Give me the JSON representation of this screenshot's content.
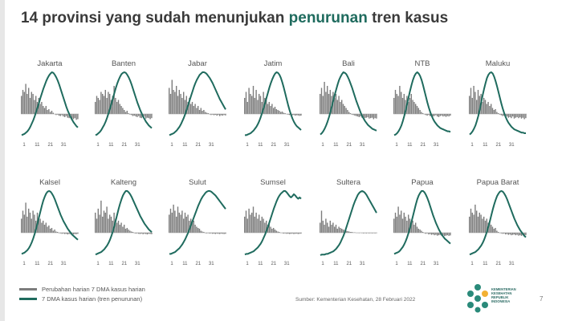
{
  "title": {
    "prefix": "14 provinsi yang sudah menunjukan",
    "accent": "penurunan",
    "suffix": "tren kasus"
  },
  "colors": {
    "bars": "#7d7d7d",
    "trend": "#1f6b5e",
    "title_accent": "#1f6b5e"
  },
  "legend": {
    "bars_label": "Perubahan harian 7 DMA kasus harian",
    "line_label": "7 DMA kasus harian (tren penurunan)"
  },
  "source": "Sumber: Kementerian Kesehatan, 28 Februari 2022",
  "logo_text": [
    "KEMENTERIAN",
    "KESEHATAN",
    "REPUBLIK",
    "INDONESIA"
  ],
  "page_number": "7",
  "chart_data": {
    "type": "bar",
    "x_ticks": [
      "1",
      "11",
      "21",
      "31"
    ],
    "x_range": [
      1,
      40
    ],
    "panels": [
      {
        "name": "Jakarta",
        "bars": [
          0.45,
          0.6,
          0.55,
          0.75,
          0.5,
          0.65,
          0.4,
          0.55,
          0.5,
          0.35,
          0.45,
          0.3,
          0.4,
          0.25,
          0.3,
          0.2,
          0.15,
          0.2,
          0.1,
          0.12,
          0.05,
          0.08,
          0.03,
          0,
          -0.05,
          -0.03,
          -0.08,
          -0.1,
          -0.06,
          -0.12,
          -0.15,
          -0.1,
          -0.18,
          -0.2,
          -0.15,
          -0.22,
          -0.25,
          -0.2,
          -0.28,
          -0.25
        ],
        "line": [
          0.02,
          0.03,
          0.04,
          0.06,
          0.08,
          0.11,
          0.15,
          0.2,
          0.25,
          0.31,
          0.38,
          0.45,
          0.52,
          0.6,
          0.67,
          0.74,
          0.8,
          0.86,
          0.91,
          0.95,
          0.98,
          1.0,
          0.99,
          0.96,
          0.92,
          0.87,
          0.81,
          0.74,
          0.67,
          0.6,
          0.53,
          0.46,
          0.4,
          0.35,
          0.3,
          0.26,
          0.22,
          0.19,
          0.16,
          0.14
        ]
      },
      {
        "name": "Banten",
        "bars": [
          0.3,
          0.45,
          0.4,
          0.35,
          0.55,
          0.5,
          0.45,
          0.6,
          0.4,
          0.55,
          0.5,
          0.35,
          0.45,
          0.7,
          0.4,
          0.3,
          0.35,
          0.25,
          0.2,
          0.15,
          0.1,
          0.05,
          0.08,
          0.02,
          -0.03,
          -0.05,
          -0.1,
          -0.08,
          -0.12,
          -0.15,
          -0.1,
          -0.18,
          -0.2,
          -0.15,
          -0.12,
          -0.22,
          -0.18,
          -0.2,
          -0.25,
          -0.2
        ],
        "line": [
          0.02,
          0.03,
          0.05,
          0.07,
          0.1,
          0.14,
          0.18,
          0.23,
          0.29,
          0.36,
          0.43,
          0.51,
          0.59,
          0.67,
          0.75,
          0.82,
          0.88,
          0.93,
          0.97,
          0.99,
          1.0,
          0.99,
          0.96,
          0.92,
          0.87,
          0.81,
          0.74,
          0.67,
          0.6,
          0.53,
          0.47,
          0.41,
          0.36,
          0.31,
          0.27,
          0.23,
          0.2,
          0.17,
          0.15,
          0.13
        ]
      },
      {
        "name": "Jabar",
        "bars": [
          0.65,
          0.5,
          0.85,
          0.6,
          0.55,
          0.7,
          0.45,
          0.6,
          0.5,
          0.4,
          0.55,
          0.35,
          0.45,
          0.3,
          0.4,
          0.25,
          0.3,
          0.2,
          0.25,
          0.15,
          0.2,
          0.1,
          0.15,
          0.08,
          0.1,
          0.05,
          0.03,
          0.02,
          -0.02,
          -0.05,
          -0.03,
          -0.06,
          -0.04,
          -0.08,
          -0.05,
          -0.1,
          -0.06,
          -0.08,
          -0.05,
          -0.07
        ],
        "line": [
          0.02,
          0.03,
          0.04,
          0.05,
          0.07,
          0.09,
          0.12,
          0.15,
          0.19,
          0.24,
          0.29,
          0.35,
          0.42,
          0.49,
          0.56,
          0.63,
          0.7,
          0.77,
          0.83,
          0.88,
          0.92,
          0.96,
          0.98,
          1.0,
          1.0,
          0.99,
          0.97,
          0.94,
          0.91,
          0.87,
          0.83,
          0.78,
          0.73,
          0.68,
          0.63,
          0.58,
          0.54,
          0.5,
          0.46,
          0.42
        ]
      },
      {
        "name": "Jatim",
        "bars": [
          0.4,
          0.55,
          0.3,
          0.65,
          0.5,
          0.45,
          0.7,
          0.4,
          0.6,
          0.35,
          0.5,
          0.45,
          0.3,
          0.55,
          0.4,
          0.35,
          0.25,
          0.3,
          0.2,
          0.25,
          0.15,
          0.18,
          0.12,
          0.1,
          0.08,
          0.05,
          0.06,
          0.03,
          0.02,
          0,
          -0.03,
          -0.05,
          -0.04,
          -0.06,
          -0.05,
          -0.08,
          -0.06,
          -0.07,
          -0.09,
          -0.08
        ],
        "line": [
          0.02,
          0.02,
          0.03,
          0.04,
          0.05,
          0.07,
          0.09,
          0.12,
          0.15,
          0.19,
          0.24,
          0.3,
          0.37,
          0.44,
          0.52,
          0.6,
          0.68,
          0.76,
          0.83,
          0.89,
          0.94,
          0.98,
          1.0,
          0.99,
          0.96,
          0.91,
          0.84,
          0.76,
          0.67,
          0.58,
          0.49,
          0.41,
          0.34,
          0.28,
          0.23,
          0.19,
          0.16,
          0.14,
          0.12,
          0.1
        ]
      },
      {
        "name": "Bali",
        "bars": [
          0.5,
          0.65,
          0.45,
          0.8,
          0.55,
          0.7,
          0.5,
          0.6,
          0.45,
          0.55,
          0.4,
          0.5,
          0.35,
          0.45,
          0.3,
          0.35,
          0.25,
          0.2,
          0.15,
          0.1,
          0.05,
          0.02,
          -0.03,
          -0.05,
          -0.08,
          -0.1,
          -0.12,
          -0.15,
          -0.12,
          -0.18,
          -0.15,
          -0.2,
          -0.18,
          -0.16,
          -0.22,
          -0.2,
          -0.18,
          -0.25,
          -0.2,
          -0.22
        ],
        "line": [
          0.03,
          0.05,
          0.08,
          0.12,
          0.17,
          0.23,
          0.3,
          0.38,
          0.47,
          0.56,
          0.65,
          0.73,
          0.81,
          0.88,
          0.93,
          0.97,
          1.0,
          0.99,
          0.97,
          0.93,
          0.88,
          0.82,
          0.76,
          0.69,
          0.62,
          0.55,
          0.49,
          0.43,
          0.37,
          0.32,
          0.28,
          0.24,
          0.21,
          0.18,
          0.16,
          0.14,
          0.12,
          0.11,
          0.1,
          0.09
        ]
      },
      {
        "name": "NTB",
        "bars": [
          0.4,
          0.6,
          0.5,
          0.45,
          0.7,
          0.55,
          0.4,
          0.5,
          0.35,
          0.45,
          0.3,
          0.4,
          0.5,
          0.35,
          0.3,
          0.25,
          0.2,
          0.15,
          0.1,
          0.05,
          0.02,
          -0.02,
          -0.05,
          -0.08,
          -0.05,
          -0.1,
          -0.08,
          -0.12,
          -0.1,
          -0.06,
          -0.12,
          -0.15,
          -0.1,
          -0.08,
          -0.12,
          -0.1,
          -0.14,
          -0.1,
          -0.12,
          -0.08
        ],
        "line": [
          0.02,
          0.03,
          0.05,
          0.08,
          0.12,
          0.17,
          0.24,
          0.32,
          0.41,
          0.51,
          0.61,
          0.71,
          0.8,
          0.88,
          0.94,
          0.98,
          1.0,
          0.98,
          0.94,
          0.88,
          0.8,
          0.71,
          0.62,
          0.53,
          0.45,
          0.38,
          0.32,
          0.27,
          0.23,
          0.2,
          0.17,
          0.15,
          0.13,
          0.12,
          0.11,
          0.1,
          0.09,
          0.08,
          0.08,
          0.07
        ]
      },
      {
        "name": "Maluku",
        "bars": [
          0.45,
          0.65,
          0.4,
          0.7,
          0.55,
          0.35,
          0.6,
          0.45,
          0.5,
          0.3,
          0.4,
          0.35,
          0.25,
          0.3,
          0.2,
          0.25,
          0.15,
          0.1,
          0.12,
          0.05,
          0.02,
          -0.03,
          -0.06,
          -0.1,
          -0.08,
          -0.14,
          -0.12,
          -0.18,
          -0.15,
          -0.2,
          -0.12,
          -0.22,
          -0.18,
          -0.15,
          -0.2,
          -0.16,
          -0.22,
          -0.18,
          -0.25,
          -0.2
        ],
        "line": [
          0.03,
          0.05,
          0.08,
          0.12,
          0.17,
          0.24,
          0.32,
          0.42,
          0.53,
          0.64,
          0.74,
          0.83,
          0.91,
          0.96,
          0.99,
          1.0,
          0.98,
          0.93,
          0.86,
          0.78,
          0.69,
          0.6,
          0.51,
          0.43,
          0.36,
          0.3,
          0.25,
          0.21,
          0.18,
          0.15,
          0.13,
          0.11,
          0.1,
          0.09,
          0.08,
          0.07,
          0.06,
          0.06,
          0.05,
          0.05
        ]
      },
      {
        "name": "Kalsel",
        "bars": [
          0.35,
          0.55,
          0.45,
          0.75,
          0.4,
          0.6,
          0.5,
          0.35,
          0.55,
          0.45,
          0.3,
          0.5,
          0.4,
          0.35,
          0.25,
          0.3,
          0.2,
          0.25,
          0.15,
          0.18,
          0.1,
          0.12,
          0.05,
          0.08,
          0.03,
          0.02,
          -0.02,
          -0.03,
          -0.05,
          -0.04,
          -0.06,
          -0.05,
          -0.08,
          -0.06,
          -0.07,
          -0.05,
          -0.08,
          -0.06,
          -0.07,
          -0.05
        ],
        "line": [
          0.02,
          0.03,
          0.04,
          0.06,
          0.08,
          0.11,
          0.15,
          0.2,
          0.26,
          0.33,
          0.41,
          0.5,
          0.59,
          0.68,
          0.77,
          0.85,
          0.91,
          0.96,
          0.99,
          1.0,
          0.99,
          0.96,
          0.92,
          0.87,
          0.81,
          0.75,
          0.69,
          0.63,
          0.58,
          0.53,
          0.49,
          0.45,
          0.41,
          0.38,
          0.35,
          0.32,
          0.3,
          0.28,
          0.26,
          0.24
        ]
      },
      {
        "name": "Kalteng",
        "bars": [
          0.5,
          0.35,
          0.6,
          0.45,
          0.8,
          0.4,
          0.55,
          0.5,
          0.65,
          0.35,
          0.45,
          0.4,
          0.3,
          0.5,
          0.35,
          0.25,
          0.3,
          0.2,
          0.25,
          0.15,
          0.2,
          0.1,
          0.12,
          0.08,
          0.05,
          0.03,
          0.02,
          -0.02,
          -0.04,
          -0.03,
          -0.05,
          -0.06,
          -0.04,
          -0.07,
          -0.05,
          -0.06,
          -0.08,
          -0.05,
          -0.06,
          -0.07
        ],
        "line": [
          0.01,
          0.02,
          0.03,
          0.04,
          0.05,
          0.07,
          0.09,
          0.12,
          0.15,
          0.19,
          0.24,
          0.3,
          0.37,
          0.45,
          0.54,
          0.63,
          0.72,
          0.8,
          0.87,
          0.93,
          0.97,
          1.0,
          1.0,
          0.98,
          0.95,
          0.91,
          0.86,
          0.81,
          0.76,
          0.71,
          0.66,
          0.61,
          0.57,
          0.53,
          0.49,
          0.46,
          0.43,
          0.4,
          0.38,
          0.36
        ]
      },
      {
        "name": "Sulut",
        "bars": [
          0.45,
          0.6,
          0.5,
          0.7,
          0.55,
          0.4,
          0.65,
          0.5,
          0.45,
          0.55,
          0.35,
          0.5,
          0.4,
          0.45,
          0.3,
          0.35,
          0.25,
          0.3,
          0.2,
          0.15,
          0.12,
          0.1,
          0.05,
          0.03,
          0.02,
          -0.02,
          -0.03,
          -0.02,
          -0.04,
          -0.03,
          -0.05,
          -0.04,
          -0.06,
          -0.04,
          -0.05,
          -0.06,
          -0.04,
          -0.05,
          -0.06,
          -0.05
        ],
        "line": [
          0.02,
          0.02,
          0.03,
          0.04,
          0.05,
          0.07,
          0.09,
          0.11,
          0.14,
          0.17,
          0.21,
          0.25,
          0.3,
          0.35,
          0.41,
          0.47,
          0.53,
          0.59,
          0.65,
          0.71,
          0.77,
          0.82,
          0.87,
          0.91,
          0.94,
          0.97,
          0.99,
          1.0,
          1.0,
          0.99,
          0.97,
          0.95,
          0.93,
          0.9,
          0.87,
          0.84,
          0.81,
          0.78,
          0.75,
          0.72
        ]
      },
      {
        "name": "Sumsel",
        "bars": [
          0.4,
          0.55,
          0.35,
          0.6,
          0.45,
          0.5,
          0.65,
          0.4,
          0.5,
          0.35,
          0.45,
          0.3,
          0.4,
          0.35,
          0.25,
          0.3,
          0.2,
          0.25,
          0.15,
          0.1,
          0.12,
          0.08,
          0.05,
          0.03,
          0.02,
          0,
          -0.02,
          -0.04,
          -0.03,
          -0.05,
          -0.04,
          -0.06,
          -0.05,
          -0.04,
          -0.06,
          -0.05,
          -0.04,
          -0.06,
          -0.05,
          -0.04
        ],
        "line": [
          0.01,
          0.02,
          0.02,
          0.03,
          0.04,
          0.05,
          0.06,
          0.08,
          0.1,
          0.12,
          0.15,
          0.18,
          0.22,
          0.27,
          0.32,
          0.38,
          0.44,
          0.51,
          0.58,
          0.65,
          0.72,
          0.78,
          0.84,
          0.89,
          0.93,
          0.96,
          0.98,
          1.0,
          1.0,
          0.98,
          0.95,
          0.92,
          0.9,
          0.92,
          0.95,
          0.93,
          0.9,
          0.88,
          0.9,
          0.88
        ]
      },
      {
        "name": "Sultera",
        "bars": [
          0.25,
          0.55,
          0.3,
          0.2,
          0.35,
          0.25,
          0.15,
          0.3,
          0.2,
          0.25,
          0.15,
          0.2,
          0.1,
          0.15,
          0.12,
          0.1,
          0.08,
          0.06,
          0.05,
          0.04,
          0.03,
          0.02,
          0.02,
          0.01,
          0.01,
          0,
          -0.01,
          -0.02,
          -0.01,
          -0.02,
          -0.03,
          -0.02,
          -0.03,
          -0.02,
          -0.03,
          -0.02,
          -0.03,
          -0.02,
          -0.03,
          -0.02
        ],
        "line": [
          0.0,
          0.01,
          0.01,
          0.01,
          0.02,
          0.02,
          0.03,
          0.04,
          0.05,
          0.06,
          0.08,
          0.1,
          0.13,
          0.16,
          0.2,
          0.25,
          0.3,
          0.36,
          0.43,
          0.5,
          0.57,
          0.64,
          0.71,
          0.78,
          0.84,
          0.89,
          0.94,
          0.97,
          0.99,
          1.0,
          0.99,
          0.97,
          0.94,
          0.9,
          0.86,
          0.82,
          0.78,
          0.74,
          0.7,
          0.66
        ]
      },
      {
        "name": "Papua",
        "bars": [
          0.35,
          0.5,
          0.4,
          0.65,
          0.45,
          0.55,
          0.35,
          0.5,
          0.4,
          0.3,
          0.45,
          0.35,
          0.25,
          0.3,
          0.2,
          0.25,
          0.15,
          0.1,
          0.08,
          0.05,
          0.02,
          -0.02,
          -0.05,
          -0.03,
          -0.08,
          -0.06,
          -0.1,
          -0.08,
          -0.12,
          -0.1,
          -0.14,
          -0.12,
          -0.1,
          -0.15,
          -0.12,
          -0.16,
          -0.14,
          -0.12,
          -0.15,
          -0.13
        ],
        "line": [
          0.02,
          0.03,
          0.04,
          0.05,
          0.07,
          0.1,
          0.13,
          0.17,
          0.22,
          0.28,
          0.35,
          0.43,
          0.52,
          0.61,
          0.7,
          0.79,
          0.87,
          0.93,
          0.97,
          1.0,
          1.0,
          0.98,
          0.94,
          0.89,
          0.83,
          0.76,
          0.69,
          0.62,
          0.56,
          0.5,
          0.45,
          0.4,
          0.36,
          0.32,
          0.29,
          0.26,
          0.24,
          0.22,
          0.2,
          0.18
        ]
      },
      {
        "name": "Papua Barat",
        "bars": [
          0.4,
          0.6,
          0.5,
          0.45,
          0.7,
          0.55,
          0.4,
          0.5,
          0.45,
          0.35,
          0.4,
          0.3,
          0.35,
          0.25,
          0.3,
          0.2,
          0.15,
          0.1,
          0.12,
          0.05,
          0.02,
          0,
          -0.03,
          -0.05,
          -0.04,
          -0.08,
          -0.06,
          -0.1,
          -0.08,
          -0.12,
          -0.1,
          -0.08,
          -0.12,
          -0.1,
          -0.14,
          -0.12,
          -0.15,
          -0.12,
          -0.14,
          -0.12
        ],
        "line": [
          0.01,
          0.02,
          0.03,
          0.04,
          0.05,
          0.07,
          0.09,
          0.12,
          0.15,
          0.19,
          0.24,
          0.3,
          0.37,
          0.45,
          0.53,
          0.62,
          0.71,
          0.79,
          0.86,
          0.92,
          0.96,
          0.99,
          1.0,
          0.99,
          0.96,
          0.92,
          0.87,
          0.81,
          0.75,
          0.69,
          0.63,
          0.57,
          0.52,
          0.47,
          0.43,
          0.39,
          0.36,
          0.33,
          0.3,
          0.28
        ]
      }
    ]
  }
}
